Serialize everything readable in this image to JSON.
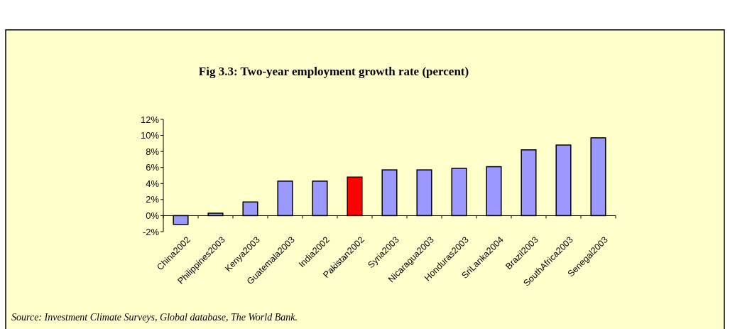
{
  "chart_data": {
    "type": "bar",
    "title": "Fig 3.3: Two-year employment growth rate (percent)",
    "categories": [
      "China2002",
      "Philippines2003",
      "Kenya2003",
      "Guatemala2003",
      "India2002",
      "Pakistan2002",
      "Syria2003",
      "Nicaragua2003",
      "Honduras2003",
      "SriLanka2004",
      "Brazil2003",
      "SouthAfrica2003",
      "Senegal2003"
    ],
    "values": [
      -1.1,
      0.3,
      1.7,
      4.3,
      4.3,
      4.8,
      5.7,
      5.7,
      5.9,
      6.1,
      8.2,
      8.8,
      9.7
    ],
    "colors": [
      "#9999ff",
      "#9999ff",
      "#9999ff",
      "#9999ff",
      "#9999ff",
      "#ff0000",
      "#9999ff",
      "#9999ff",
      "#9999ff",
      "#9999ff",
      "#9999ff",
      "#9999ff",
      "#9999ff"
    ],
    "ylim": [
      -2,
      12
    ],
    "yticks": [
      {
        "value": -2,
        "label": "-2%"
      },
      {
        "value": 0,
        "label": "0%"
      },
      {
        "value": 2,
        "label": "2%"
      },
      {
        "value": 4,
        "label": "4%"
      },
      {
        "value": 6,
        "label": "6%"
      },
      {
        "value": 8,
        "label": "8%"
      },
      {
        "value": 10,
        "label": "10%"
      },
      {
        "value": 12,
        "label": "12%"
      }
    ],
    "grid": false,
    "annotations": [
      "Source: Investment Climate Surveys, Global database, The World Bank."
    ]
  }
}
